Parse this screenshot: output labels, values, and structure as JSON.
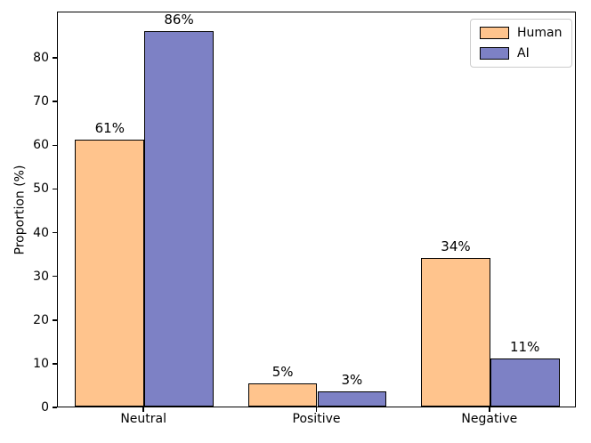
{
  "chart_data": {
    "type": "bar",
    "title": "",
    "xlabel": "",
    "ylabel": "Proportion (%)",
    "categories": [
      "Neutral",
      "Positive",
      "Negative"
    ],
    "series": [
      {
        "name": "Human",
        "color": "#FFC48D",
        "values": [
          61,
          5.3,
          34
        ],
        "labels": [
          "61%",
          "5%",
          "34%"
        ]
      },
      {
        "name": "AI",
        "color": "#7D81C5",
        "values": [
          86,
          3.4,
          11
        ],
        "labels": [
          "86%",
          "3%",
          "11%"
        ]
      }
    ],
    "yticks": [
      0,
      10,
      20,
      30,
      40,
      50,
      60,
      70,
      80
    ],
    "ylim": [
      0,
      90.6
    ],
    "bar_edge_color": "#000000",
    "grid": false,
    "legend": {
      "position": "upper right",
      "entries": [
        "Human",
        "AI"
      ]
    }
  },
  "colors": {
    "background": "#FFFFFF",
    "axis": "#000000",
    "legend_border": "#CCCCCC",
    "text": "#000000"
  }
}
